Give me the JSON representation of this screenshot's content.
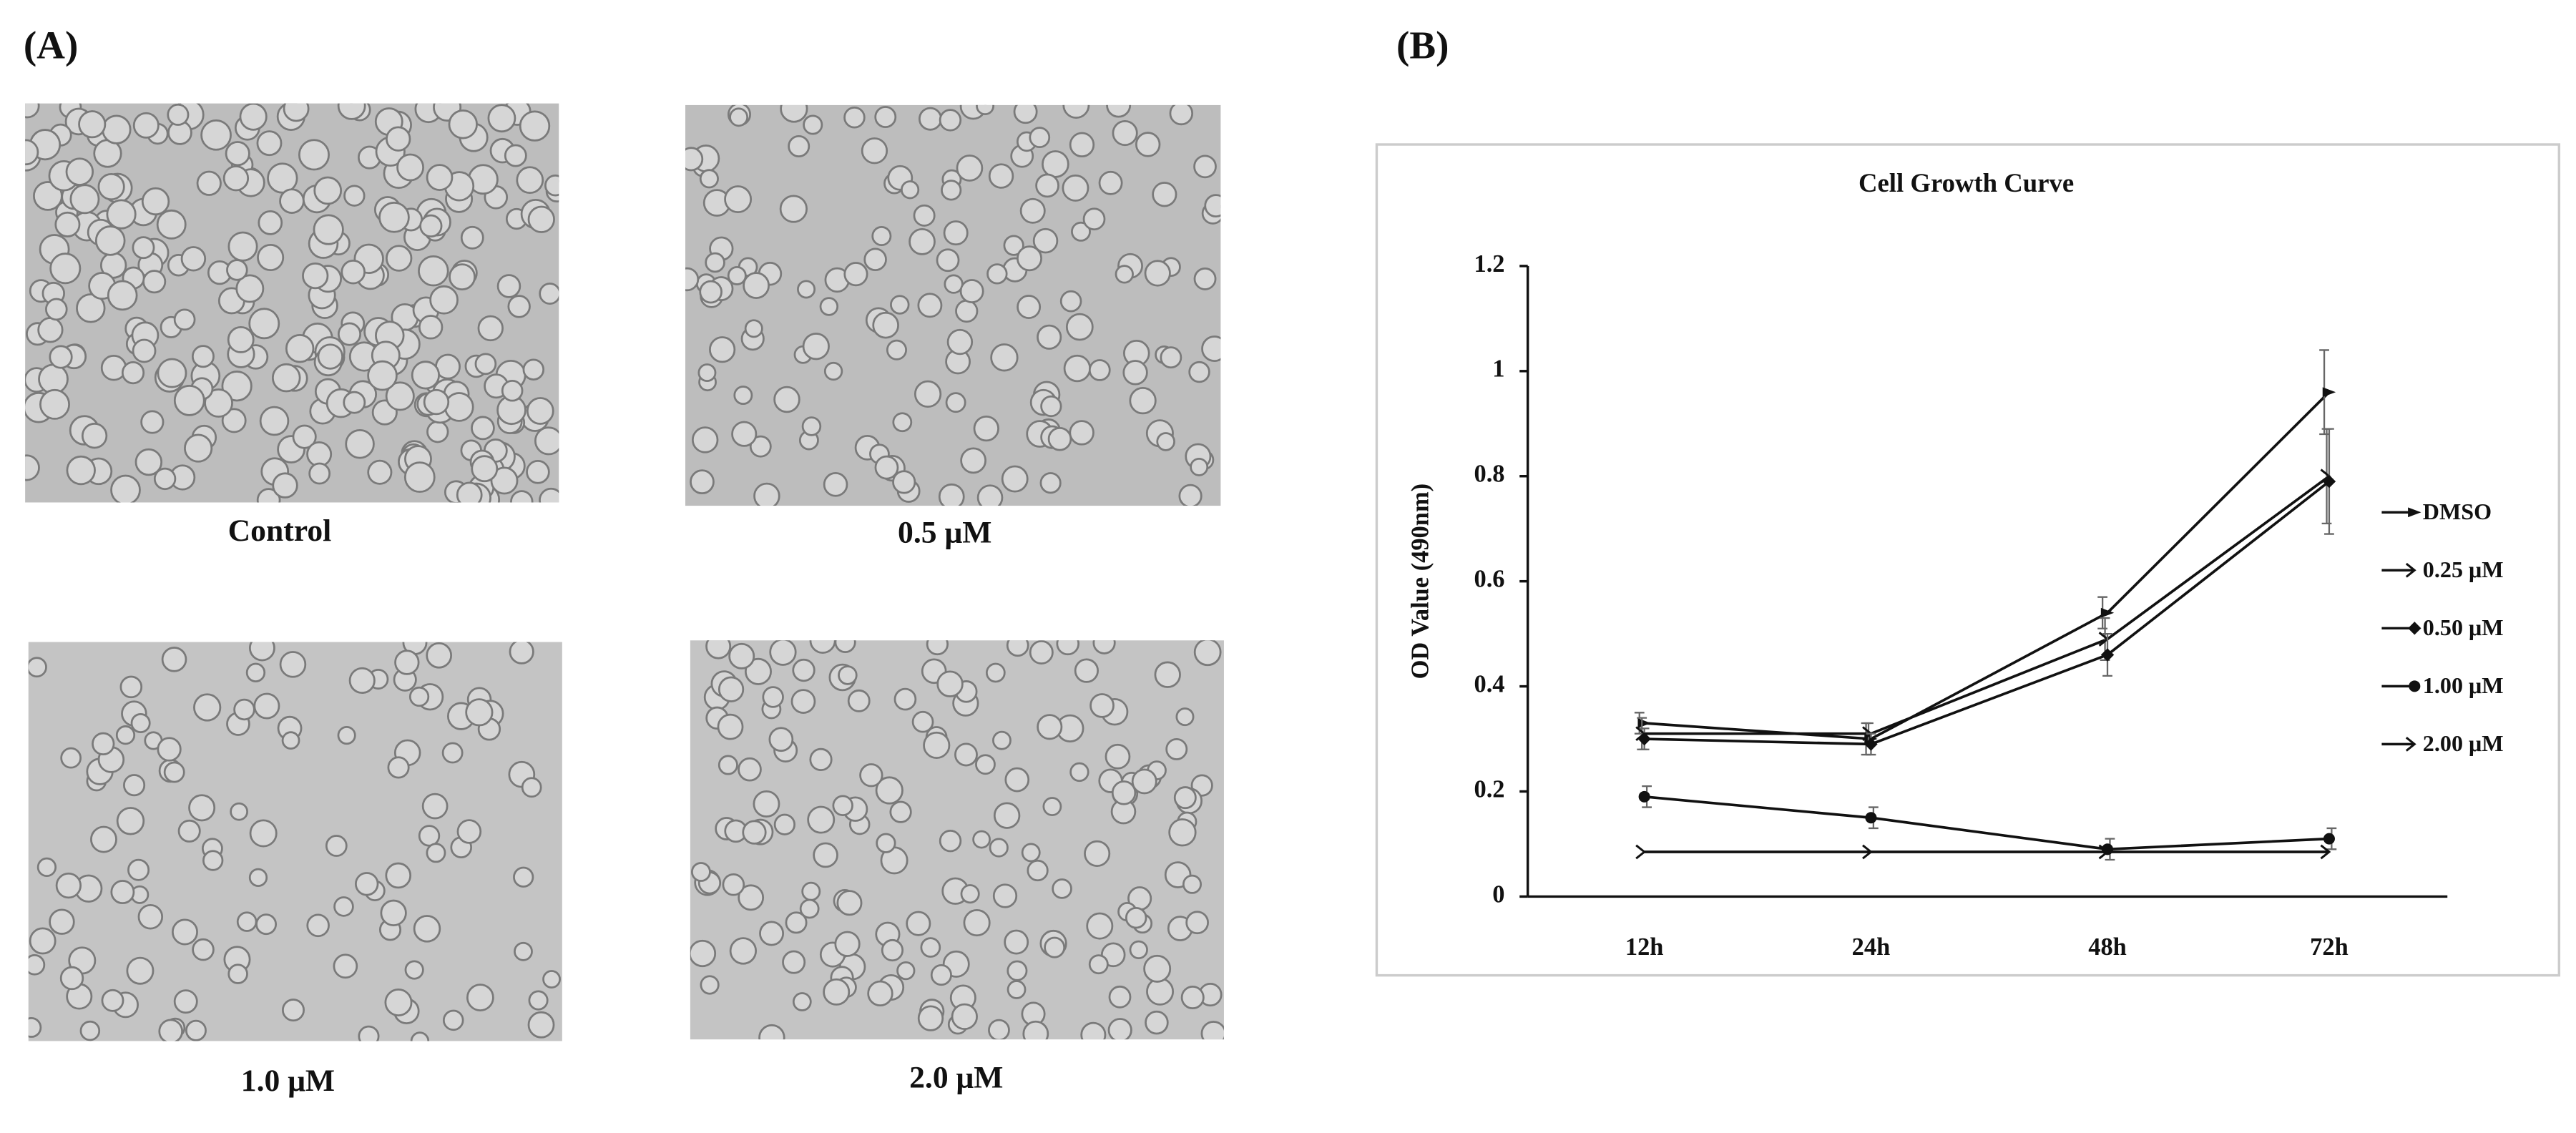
{
  "panel_a": {
    "label": "(A)",
    "images": [
      {
        "caption": "Control"
      },
      {
        "caption": "0.5 μM"
      },
      {
        "caption": "1.0 μM"
      },
      {
        "caption": "2.0 μM"
      }
    ]
  },
  "panel_b_label": "(B)",
  "chart_data": {
    "type": "line",
    "title": "Cell Growth Curve",
    "y_label": "OD Value (490nm)",
    "categories": [
      "12h",
      "24h",
      "48h",
      "72h"
    ],
    "ylim": [
      0,
      1.2
    ],
    "yticks": [
      0,
      0.2,
      0.4,
      0.6,
      0.8,
      1,
      1.2
    ],
    "series": [
      {
        "name": "DMSO",
        "color": "#111111",
        "marker": "triangle",
        "values": [
          0.33,
          0.3,
          0.54,
          0.96
        ],
        "errors": [
          0.02,
          0.03,
          0.03,
          0.08
        ]
      },
      {
        "name": "0.25 μM",
        "color": "#111111",
        "marker": "arrow",
        "values": [
          0.31,
          0.31,
          0.49,
          0.8
        ],
        "errors": [
          0.03,
          0.02,
          0.04,
          0.09
        ]
      },
      {
        "name": "0.50 μM",
        "color": "#111111",
        "marker": "diamond",
        "values": [
          0.3,
          0.29,
          0.46,
          0.79
        ],
        "errors": [
          0.02,
          0.02,
          0.04,
          0.1
        ]
      },
      {
        "name": "1.00 μM",
        "color": "#111111",
        "marker": "circle",
        "values": [
          0.19,
          0.15,
          0.09,
          0.11
        ],
        "errors": [
          0.02,
          0.02,
          0.02,
          0.02
        ]
      },
      {
        "name": "2.00 μM",
        "color": "#111111",
        "marker": "arrow",
        "values": [
          0.085,
          0.085,
          0.085,
          0.085
        ],
        "errors": [
          0.0,
          0.0,
          0.0,
          0.0
        ]
      }
    ]
  }
}
